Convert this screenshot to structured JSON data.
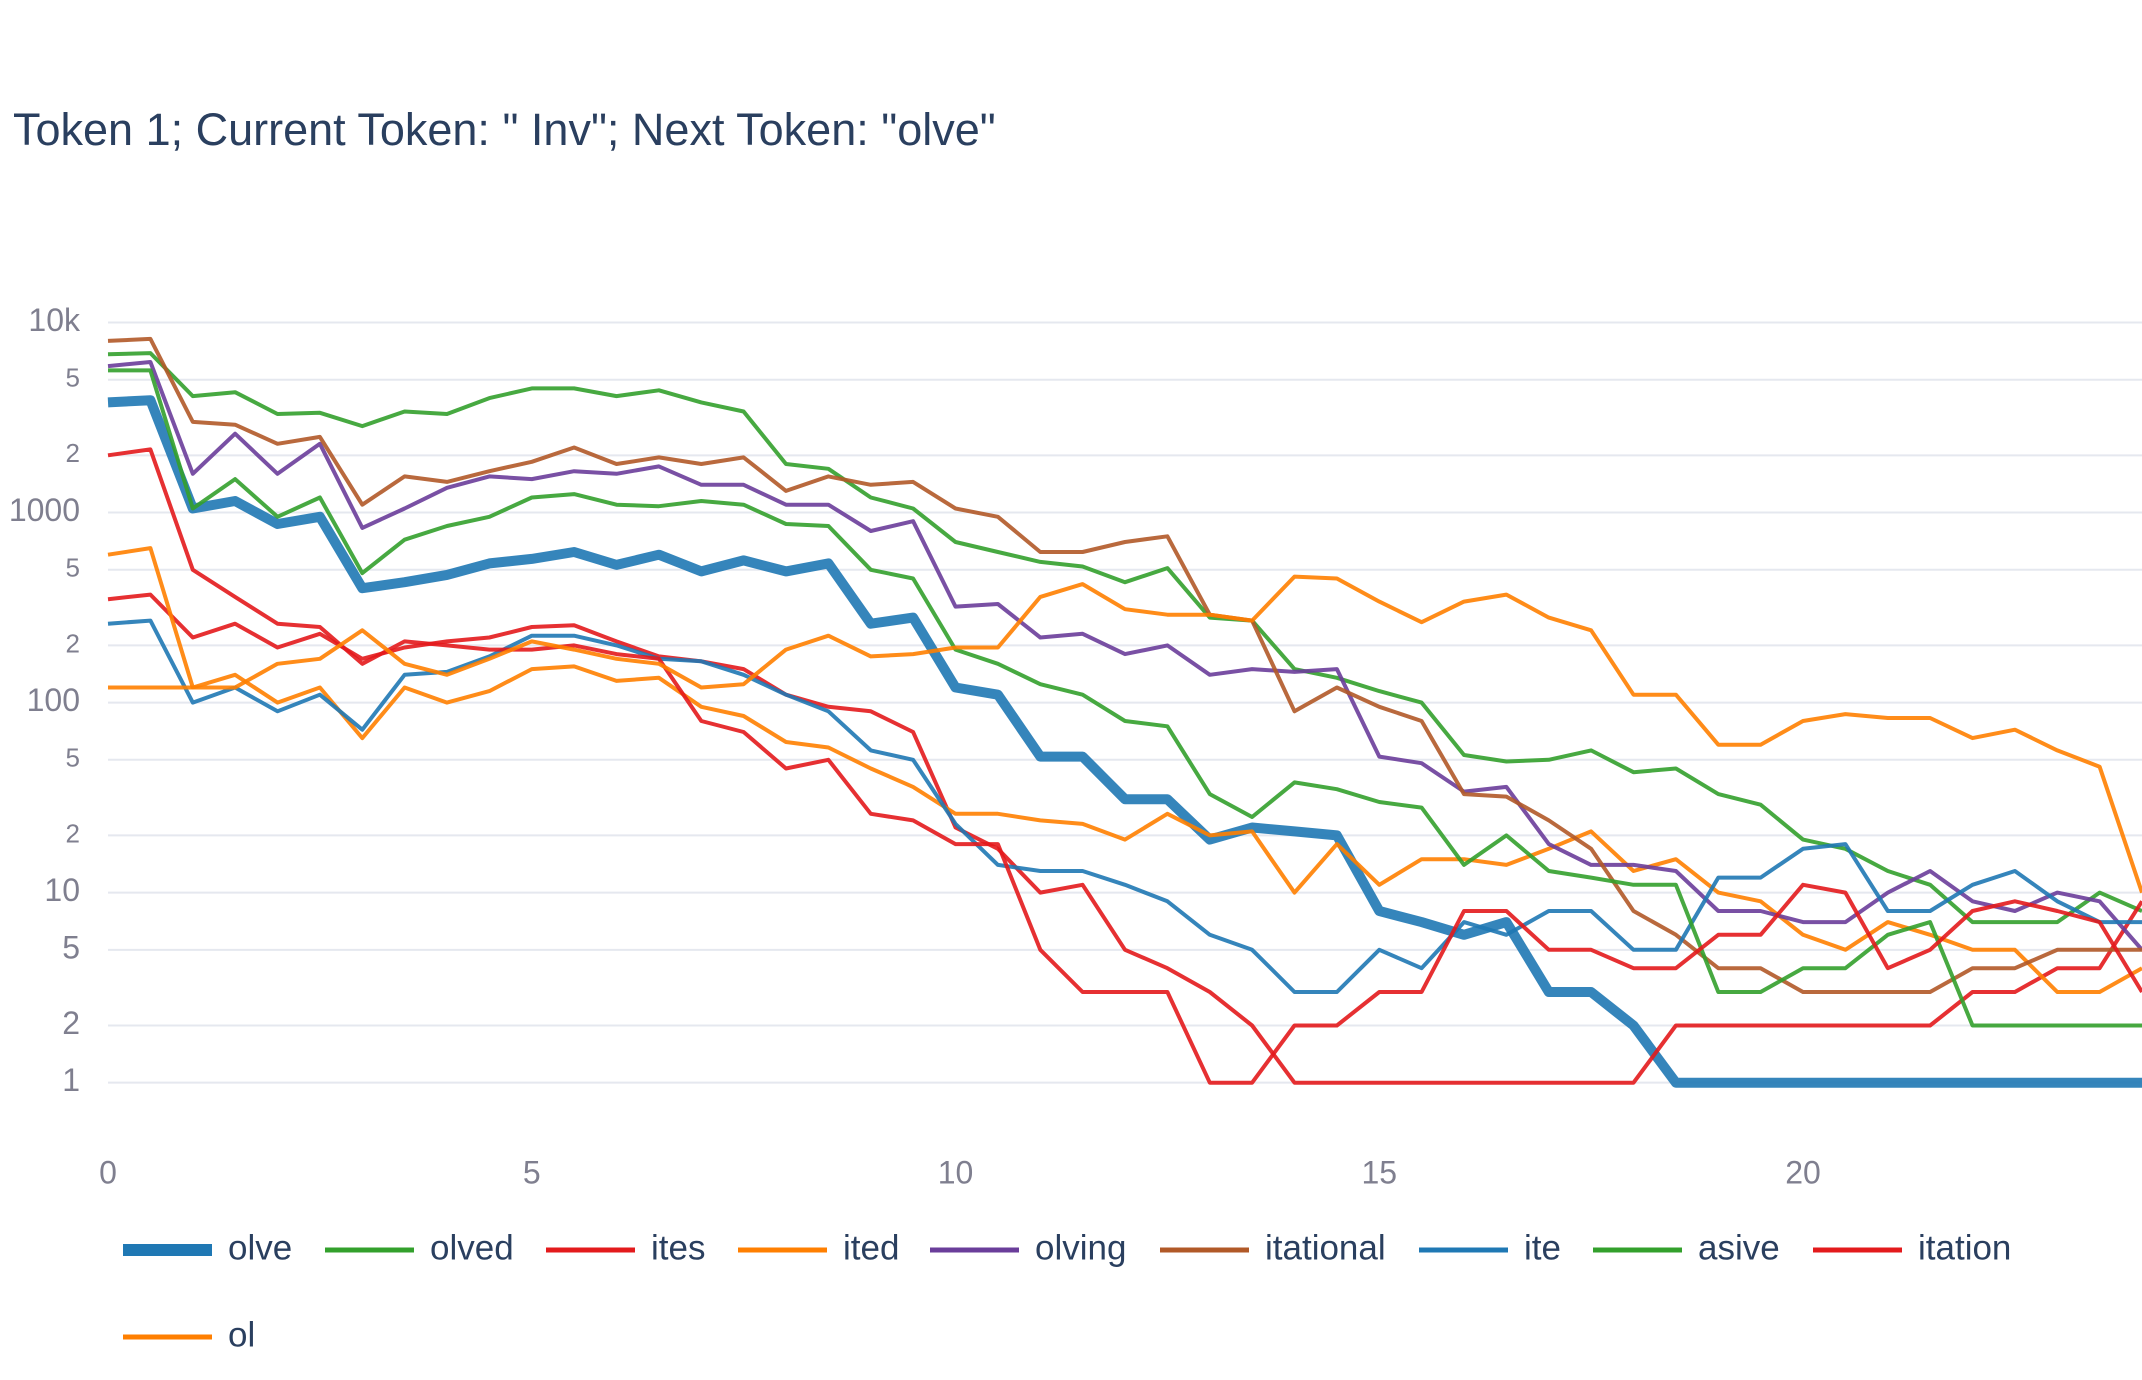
{
  "chart_data": {
    "type": "line",
    "title": "Token 1; Current Token: \" Inv\"; Next Token: \"olve\"",
    "log_y": true,
    "grid": true,
    "x": [
      0,
      0.5,
      1,
      1.5,
      2,
      2.5,
      3,
      3.5,
      4,
      4.5,
      5,
      5.5,
      6,
      6.5,
      7,
      7.5,
      8,
      8.5,
      9,
      9.5,
      10,
      10.5,
      11,
      11.5,
      12,
      12.5,
      13,
      13.5,
      14,
      14.5,
      15,
      15.5,
      16,
      16.5,
      17,
      17.5,
      18,
      18.5,
      19,
      19.5,
      20,
      20.5,
      21,
      21.5,
      22,
      22.5,
      23,
      23.5,
      24
    ],
    "xlim": [
      0,
      24
    ],
    "xticks": [
      0,
      5,
      10,
      15,
      20
    ],
    "ylim": [
      0.55,
      18000
    ],
    "yticks": [
      1,
      2,
      5,
      10,
      {
        "value": 20,
        "label": "2"
      },
      {
        "value": 50,
        "label": "5"
      },
      100,
      {
        "value": 200,
        "label": "2"
      },
      {
        "value": 500,
        "label": "5"
      },
      1000,
      {
        "value": 2000,
        "label": "2"
      },
      {
        "value": 5000,
        "label": "5"
      },
      {
        "value": 10000,
        "label": "10k"
      }
    ],
    "series": [
      {
        "name": "olve",
        "color": "#1f78b4",
        "values": [
          3800,
          3900,
          1050,
          1150,
          870,
          950,
          400,
          430,
          470,
          540,
          570,
          620,
          530,
          600,
          490,
          560,
          490,
          540,
          260,
          280,
          120,
          110,
          52,
          52,
          31,
          31,
          19,
          22,
          21,
          20,
          8,
          7,
          6,
          7,
          3,
          3,
          2,
          1,
          1,
          1,
          1,
          1,
          1,
          1,
          1,
          1,
          1,
          1,
          1
        ]
      },
      {
        "name": "olved",
        "color": "#33a02c",
        "values": [
          6800,
          6900,
          4100,
          4300,
          3300,
          3350,
          2850,
          3400,
          3300,
          4000,
          4500,
          4500,
          4100,
          4400,
          3800,
          3400,
          1800,
          1700,
          1200,
          1050,
          700,
          620,
          550,
          520,
          430,
          510,
          280,
          270,
          150,
          135,
          115,
          100,
          53,
          49,
          50,
          56,
          43,
          45,
          33,
          29,
          19,
          17,
          13,
          11,
          7,
          7,
          7,
          10,
          8
        ]
      },
      {
        "name": "ites",
        "color": "#e31a1c",
        "values": [
          350,
          370,
          220,
          260,
          195,
          230,
          170,
          195,
          210,
          220,
          250,
          255,
          210,
          175,
          165,
          150,
          110,
          95,
          90,
          70,
          22,
          17,
          10,
          11,
          5,
          4,
          3,
          2,
          1,
          1,
          1,
          1,
          1,
          1,
          1,
          1,
          1,
          2,
          2,
          2,
          2,
          2,
          2,
          2,
          3,
          3,
          4,
          4,
          9
        ]
      },
      {
        "name": "ited",
        "color": "#ff7f00",
        "values": [
          600,
          650,
          120,
          140,
          100,
          120,
          65,
          120,
          100,
          115,
          150,
          155,
          130,
          135,
          95,
          85,
          62,
          58,
          45,
          36,
          26,
          26,
          24,
          23,
          19,
          26,
          20,
          21,
          10,
          18,
          11,
          15,
          15,
          14,
          17,
          21,
          13,
          15,
          10,
          9,
          6,
          5,
          7,
          6,
          5,
          5,
          3,
          3,
          4
        ]
      },
      {
        "name": "olving",
        "color": "#6a3d9a",
        "values": [
          5900,
          6200,
          1600,
          2600,
          1600,
          2300,
          830,
          1050,
          1350,
          1550,
          1500,
          1650,
          1600,
          1750,
          1400,
          1400,
          1100,
          1100,
          800,
          900,
          320,
          330,
          220,
          230,
          180,
          200,
          140,
          150,
          145,
          150,
          52,
          48,
          34,
          36,
          18,
          14,
          14,
          13,
          8,
          8,
          7,
          7,
          10,
          13,
          9,
          8,
          10,
          9,
          5
        ]
      },
      {
        "name": "itational",
        "color": "#b15928",
        "values": [
          8000,
          8200,
          3000,
          2900,
          2300,
          2500,
          1100,
          1550,
          1450,
          1650,
          1850,
          2200,
          1800,
          1950,
          1800,
          1950,
          1300,
          1550,
          1400,
          1450,
          1050,
          950,
          620,
          620,
          700,
          750,
          290,
          270,
          90,
          120,
          95,
          80,
          33,
          32,
          24,
          17,
          8,
          6,
          4,
          4,
          3,
          3,
          3,
          3,
          4,
          4,
          5,
          5,
          5
        ]
      },
      {
        "name": "ite",
        "color": "#1f78b4",
        "values": [
          260,
          270,
          100,
          120,
          90,
          110,
          72,
          140,
          145,
          175,
          225,
          225,
          200,
          170,
          165,
          140,
          110,
          90,
          56,
          50,
          23,
          14,
          13,
          13,
          11,
          9,
          6,
          5,
          3,
          3,
          5,
          4,
          7,
          6,
          8,
          8,
          5,
          5,
          12,
          12,
          17,
          18,
          8,
          8,
          11,
          13,
          9,
          7,
          7
        ]
      },
      {
        "name": "asive",
        "color": "#33a02c",
        "values": [
          5600,
          5600,
          1050,
          1500,
          950,
          1200,
          480,
          720,
          850,
          950,
          1200,
          1250,
          1100,
          1080,
          1150,
          1100,
          870,
          850,
          500,
          450,
          190,
          160,
          125,
          110,
          80,
          75,
          33,
          25,
          38,
          35,
          30,
          28,
          14,
          20,
          13,
          12,
          11,
          11,
          3,
          3,
          4,
          4,
          6,
          7,
          2,
          2,
          2,
          2,
          2
        ]
      },
      {
        "name": "itation",
        "color": "#e31a1c",
        "values": [
          2000,
          2150,
          500,
          360,
          260,
          250,
          160,
          210,
          200,
          190,
          190,
          200,
          180,
          170,
          80,
          70,
          45,
          50,
          26,
          24,
          18,
          18,
          5,
          3,
          3,
          3,
          1,
          1,
          2,
          2,
          3,
          3,
          8,
          8,
          5,
          5,
          4,
          4,
          6,
          6,
          11,
          10,
          4,
          5,
          8,
          9,
          8,
          7,
          3
        ]
      },
      {
        "name": "ol",
        "color": "#ff7f00",
        "values": [
          120,
          120,
          120,
          120,
          160,
          170,
          240,
          160,
          140,
          170,
          210,
          190,
          170,
          160,
          120,
          125,
          190,
          225,
          175,
          180,
          195,
          195,
          360,
          420,
          310,
          290,
          290,
          270,
          460,
          450,
          340,
          265,
          340,
          370,
          280,
          240,
          110,
          110,
          60,
          60,
          80,
          87,
          83,
          83,
          65,
          72,
          56,
          46,
          10
        ]
      }
    ]
  }
}
